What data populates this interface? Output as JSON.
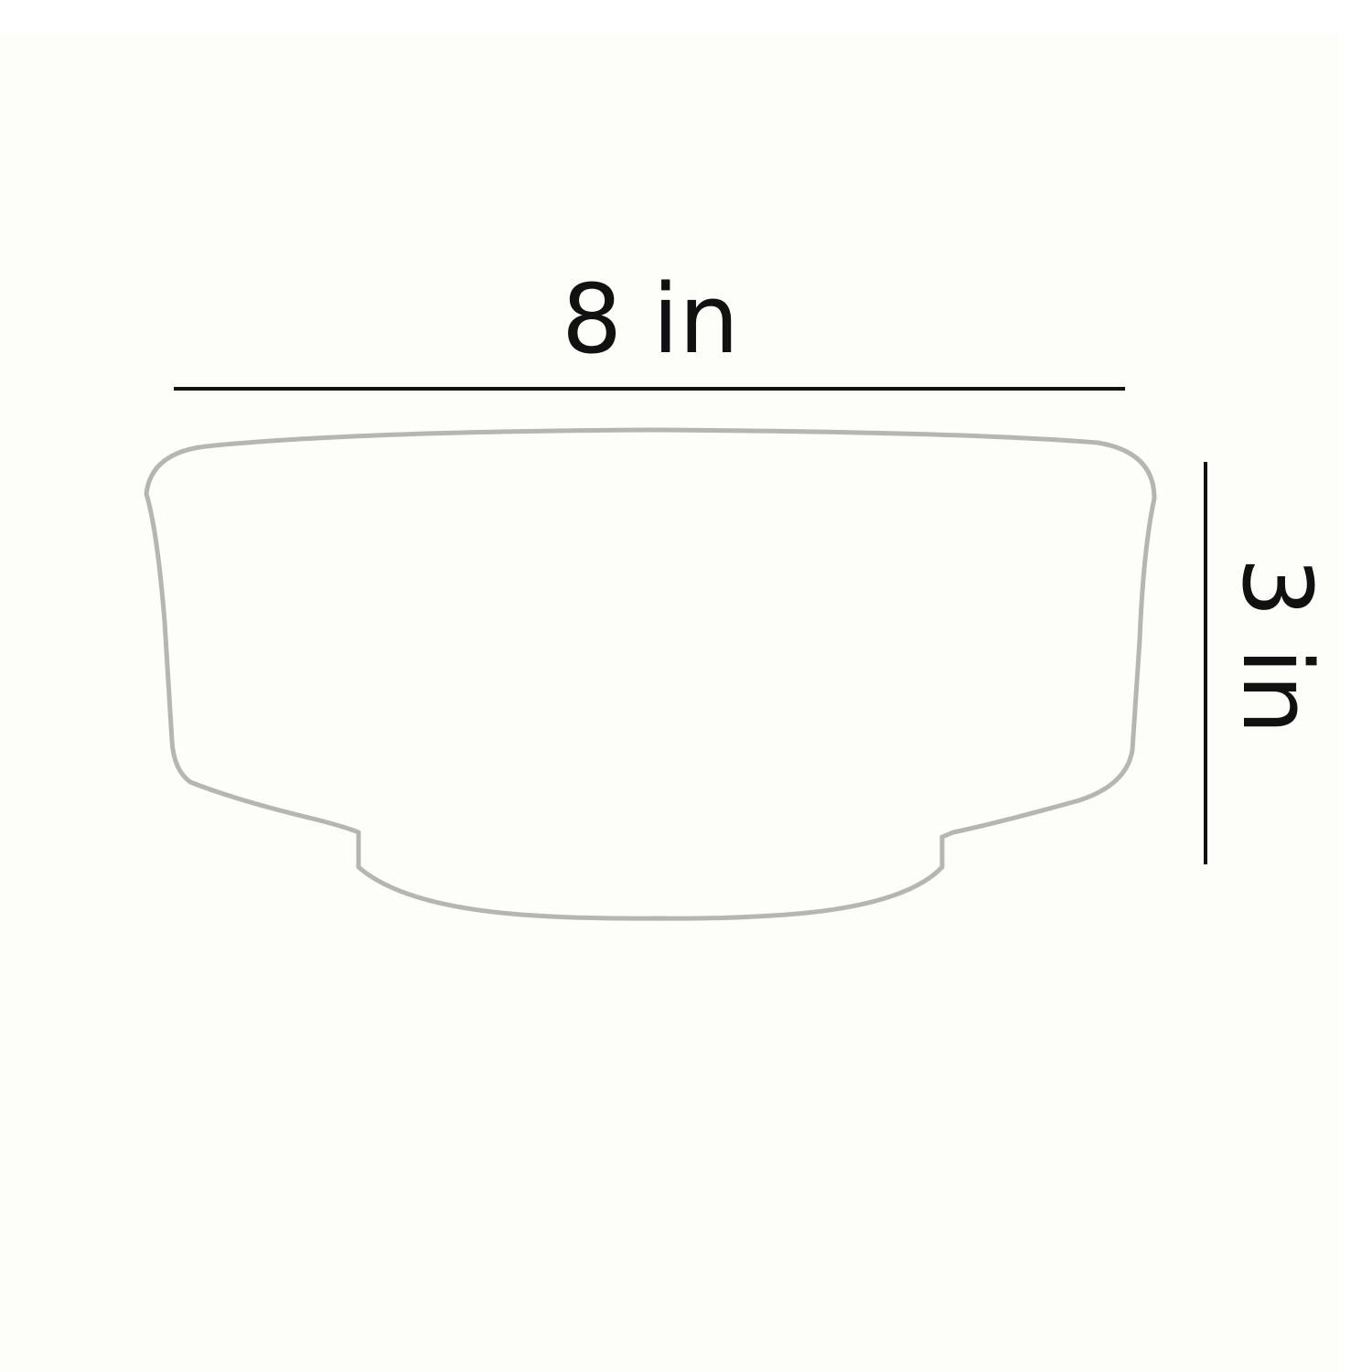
{
  "dimensions": {
    "width": {
      "label": "8 in"
    },
    "height": {
      "label": "3 in"
    }
  },
  "colors": {
    "background": "#fdfdfa",
    "outline": "#b5b5b2",
    "dimension_line": "#111111"
  }
}
